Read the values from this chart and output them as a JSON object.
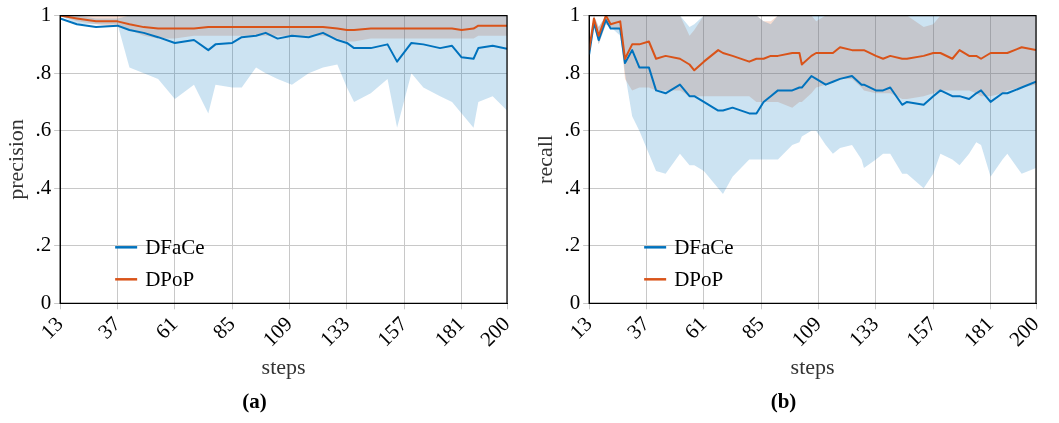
{
  "chart_data": [
    {
      "type": "line",
      "title": "(a)",
      "xlabel": "steps",
      "ylabel": "precision",
      "xlim": [
        13,
        200
      ],
      "xticks": [
        13,
        37,
        61,
        85,
        109,
        133,
        157,
        181,
        200
      ],
      "ylim": [
        0,
        1
      ],
      "yticks": [
        {
          "value": 0,
          "label": "0"
        },
        {
          "value": 0.2,
          "label": ".2"
        },
        {
          "value": 0.4,
          "label": ".4"
        },
        {
          "value": 0.6,
          "label": ".6"
        },
        {
          "value": 0.8,
          "label": ".8"
        },
        {
          "value": 1,
          "label": "1"
        }
      ],
      "grid": true,
      "legend": "bottom left",
      "x": [
        13,
        20,
        28,
        37,
        42,
        48,
        54,
        61,
        69,
        75,
        78,
        85,
        89,
        95,
        99,
        104,
        110,
        117,
        123,
        129,
        133,
        136,
        143,
        150,
        154,
        160,
        165,
        172,
        177,
        181,
        186,
        188,
        194,
        200
      ],
      "series": [
        {
          "name": "DFaCe",
          "color": "#0072bd",
          "values": [
            0.99,
            0.97,
            0.96,
            0.965,
            0.95,
            0.94,
            0.925,
            0.905,
            0.915,
            0.88,
            0.9,
            0.905,
            0.925,
            0.93,
            0.94,
            0.92,
            0.93,
            0.925,
            0.94,
            0.915,
            0.905,
            0.887,
            0.887,
            0.9,
            0.84,
            0.905,
            0.9,
            0.887,
            0.895,
            0.855,
            0.85,
            0.887,
            0.895,
            0.885
          ],
          "lower": [
            1.0,
            0.97,
            0.97,
            0.97,
            0.82,
            0.8,
            0.78,
            0.71,
            0.76,
            0.66,
            0.76,
            0.75,
            0.75,
            0.82,
            0.8,
            0.78,
            0.76,
            0.8,
            0.82,
            0.83,
            0.75,
            0.7,
            0.73,
            0.78,
            0.61,
            0.8,
            0.75,
            0.72,
            0.7,
            0.66,
            0.61,
            0.7,
            0.72,
            0.67
          ],
          "upper": [
            1.0,
            1.0,
            0.99,
            0.99,
            1.0,
            1.0,
            1.0,
            1.0,
            1.0,
            1.0,
            1.0,
            1.0,
            1.0,
            1.0,
            1.0,
            1.0,
            1.0,
            1.0,
            1.0,
            1.0,
            1.0,
            1.0,
            1.0,
            1.0,
            1.0,
            1.0,
            1.0,
            1.0,
            1.0,
            1.0,
            1.0,
            1.0,
            1.0,
            1.0
          ]
        },
        {
          "name": "DPoP",
          "color": "#d95319",
          "values": [
            1.0,
            0.99,
            0.98,
            0.98,
            0.97,
            0.96,
            0.955,
            0.955,
            0.955,
            0.96,
            0.96,
            0.96,
            0.96,
            0.96,
            0.96,
            0.96,
            0.96,
            0.96,
            0.96,
            0.955,
            0.95,
            0.95,
            0.955,
            0.955,
            0.955,
            0.955,
            0.955,
            0.955,
            0.955,
            0.95,
            0.955,
            0.965,
            0.965,
            0.965
          ],
          "lower": [
            1.0,
            0.98,
            0.97,
            0.96,
            0.95,
            0.93,
            0.92,
            0.92,
            0.93,
            0.93,
            0.93,
            0.93,
            0.93,
            0.93,
            0.93,
            0.93,
            0.93,
            0.93,
            0.93,
            0.92,
            0.91,
            0.91,
            0.92,
            0.92,
            0.92,
            0.92,
            0.92,
            0.92,
            0.92,
            0.92,
            0.92,
            0.93,
            0.93,
            0.93
          ],
          "upper": [
            1.0,
            1.0,
            1.0,
            1.0,
            1.0,
            1.0,
            1.0,
            1.0,
            1.0,
            1.0,
            1.0,
            1.0,
            1.0,
            1.0,
            1.0,
            1.0,
            1.0,
            1.0,
            1.0,
            1.0,
            1.0,
            1.0,
            1.0,
            1.0,
            1.0,
            1.0,
            1.0,
            1.0,
            1.0,
            1.0,
            1.0,
            1.0,
            1.0,
            1.0
          ]
        }
      ]
    },
    {
      "type": "line",
      "title": "(b)",
      "xlabel": "steps",
      "ylabel": "recall",
      "xlim": [
        13,
        200
      ],
      "xticks": [
        13,
        37,
        61,
        85,
        109,
        133,
        157,
        181,
        200
      ],
      "ylim": [
        0,
        1
      ],
      "yticks": [
        {
          "value": 0,
          "label": "0"
        },
        {
          "value": 0.2,
          "label": ".2"
        },
        {
          "value": 0.4,
          "label": ".4"
        },
        {
          "value": 0.6,
          "label": ".6"
        },
        {
          "value": 0.8,
          "label": ".8"
        },
        {
          "value": 1,
          "label": "1"
        }
      ],
      "grid": true,
      "legend": "bottom left",
      "x": [
        13,
        15,
        17,
        20,
        22,
        26,
        28,
        31,
        34,
        38,
        41,
        45,
        51,
        55,
        57,
        61,
        67,
        69,
        73,
        80,
        83,
        86,
        89,
        92,
        98,
        101,
        102,
        106,
        108,
        112,
        115,
        118,
        123,
        127,
        128,
        133,
        136,
        139,
        144,
        146,
        153,
        157,
        160,
        165,
        168,
        172,
        175,
        177,
        181,
        186,
        188,
        194,
        200
      ],
      "series": [
        {
          "name": "DFaCe",
          "color": "#0072bd",
          "values": [
            0.865,
            0.975,
            0.915,
            0.985,
            0.955,
            0.955,
            0.835,
            0.88,
            0.82,
            0.82,
            0.74,
            0.73,
            0.76,
            0.72,
            0.72,
            0.7,
            0.67,
            0.67,
            0.68,
            0.66,
            0.66,
            0.7,
            0.72,
            0.74,
            0.74,
            0.75,
            0.75,
            0.79,
            0.78,
            0.76,
            0.77,
            0.78,
            0.79,
            0.76,
            0.76,
            0.74,
            0.74,
            0.75,
            0.69,
            0.7,
            0.69,
            0.72,
            0.74,
            0.72,
            0.72,
            0.71,
            0.73,
            0.74,
            0.7,
            0.73,
            0.73,
            0.75,
            0.77
          ],
          "lower": [
            0.88,
            0.97,
            0.9,
            0.97,
            0.96,
            0.93,
            0.8,
            0.65,
            0.6,
            0.52,
            0.46,
            0.45,
            0.52,
            0.48,
            0.48,
            0.46,
            0.4,
            0.38,
            0.44,
            0.5,
            0.5,
            0.5,
            0.5,
            0.5,
            0.55,
            0.56,
            0.58,
            0.6,
            0.6,
            0.55,
            0.52,
            0.54,
            0.55,
            0.5,
            0.47,
            0.5,
            0.52,
            0.52,
            0.45,
            0.45,
            0.4,
            0.45,
            0.52,
            0.5,
            0.48,
            0.52,
            0.56,
            0.55,
            0.44,
            0.5,
            0.52,
            0.45,
            0.47
          ],
          "upper": [
            0.88,
            1,
            0.96,
            1,
            1,
            1,
            1,
            1,
            1,
            1,
            1,
            1,
            1,
            0.96,
            0.97,
            1,
            1,
            1,
            1,
            1,
            1,
            0.98,
            0.97,
            1,
            1,
            1,
            1,
            1,
            1,
            1,
            1,
            1,
            1,
            1,
            1,
            1,
            1,
            1,
            1,
            1,
            1,
            1,
            1,
            1,
            1,
            1,
            1,
            1,
            1,
            1,
            1,
            1,
            1
          ]
        },
        {
          "name": "DPoP",
          "color": "#d95319",
          "values": [
            0.88,
            0.99,
            0.93,
            1,
            0.97,
            0.98,
            0.85,
            0.9,
            0.9,
            0.91,
            0.85,
            0.86,
            0.85,
            0.83,
            0.81,
            0.84,
            0.88,
            0.87,
            0.86,
            0.84,
            0.85,
            0.85,
            0.86,
            0.86,
            0.87,
            0.87,
            0.83,
            0.86,
            0.87,
            0.87,
            0.87,
            0.89,
            0.88,
            0.88,
            0.88,
            0.86,
            0.85,
            0.86,
            0.85,
            0.85,
            0.86,
            0.87,
            0.87,
            0.85,
            0.88,
            0.86,
            0.86,
            0.85,
            0.87,
            0.87,
            0.87,
            0.89,
            0.88
          ],
          "lower": [
            0.88,
            0.97,
            0.9,
            0.97,
            0.96,
            0.95,
            0.78,
            0.74,
            0.75,
            0.75,
            0.74,
            0.74,
            0.74,
            0.72,
            0.72,
            0.72,
            0.72,
            0.72,
            0.72,
            0.72,
            0.7,
            0.7,
            0.7,
            0.7,
            0.68,
            0.7,
            0.7,
            0.73,
            0.75,
            0.76,
            0.77,
            0.78,
            0.78,
            0.75,
            0.74,
            0.73,
            0.73,
            0.73,
            0.71,
            0.71,
            0.72,
            0.73,
            0.74,
            0.74,
            0.74,
            0.74,
            0.73,
            0.72,
            0.72,
            0.73,
            0.74,
            0.75,
            0.76
          ],
          "upper": [
            0.88,
            1,
            0.96,
            1,
            1,
            1,
            1,
            1,
            1,
            1,
            1,
            1,
            1,
            0.93,
            0.95,
            1,
            1,
            1,
            1,
            1,
            1,
            0.98,
            0.98,
            1,
            1,
            1,
            1,
            1,
            0.98,
            1,
            1,
            1,
            1,
            1,
            1,
            1,
            1,
            1,
            1,
            1,
            0.96,
            0.97,
            1,
            1,
            1,
            1,
            1,
            1,
            1,
            1,
            1,
            1,
            1
          ]
        }
      ]
    }
  ]
}
